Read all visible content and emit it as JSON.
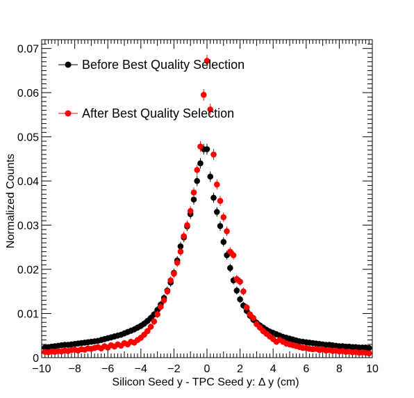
{
  "chart_data": {
    "type": "scatter",
    "xlabel": "Silicon Seed y - TPC Seed y:      Δ y (cm)",
    "ylabel": "Normalized Counts",
    "xlim": [
      -10,
      10
    ],
    "ylim": [
      0,
      0.072
    ],
    "x_ticks": [
      -10,
      -8,
      -6,
      -4,
      -2,
      0,
      2,
      4,
      6,
      8,
      10
    ],
    "y_ticks": [
      0,
      0.01,
      0.02,
      0.03,
      0.04,
      0.05,
      0.06,
      0.07
    ],
    "x_tick_labels": [
      "−10",
      "−8",
      "−6",
      "−4",
      "−2",
      "0",
      "2",
      "4",
      "6",
      "8",
      "10"
    ],
    "y_tick_labels": [
      "0",
      "0.01",
      "0.02",
      "0.03",
      "0.04",
      "0.05",
      "0.06",
      "0.07"
    ],
    "legend_position": "top-left",
    "grid": false,
    "series": [
      {
        "name": "Before Best Quality Selection",
        "color": "#000000",
        "x": [
          -9.8,
          -9.6,
          -9.4,
          -9.2,
          -9.0,
          -8.8,
          -8.6,
          -8.4,
          -8.2,
          -8.0,
          -7.8,
          -7.6,
          -7.4,
          -7.2,
          -7.0,
          -6.8,
          -6.6,
          -6.4,
          -6.2,
          -6.0,
          -5.8,
          -5.6,
          -5.4,
          -5.2,
          -5.0,
          -4.8,
          -4.6,
          -4.4,
          -4.2,
          -4.0,
          -3.8,
          -3.6,
          -3.4,
          -3.2,
          -3.0,
          -2.8,
          -2.6,
          -2.4,
          -2.2,
          -2.0,
          -1.8,
          -1.6,
          -1.4,
          -1.2,
          -1.0,
          -0.8,
          -0.6,
          -0.4,
          -0.2,
          0.0,
          0.2,
          0.4,
          0.6,
          0.8,
          1.0,
          1.2,
          1.4,
          1.6,
          1.8,
          2.0,
          2.2,
          2.4,
          2.6,
          2.8,
          3.0,
          3.2,
          3.4,
          3.6,
          3.8,
          4.0,
          4.2,
          4.4,
          4.6,
          4.8,
          5.0,
          5.2,
          5.4,
          5.6,
          5.8,
          6.0,
          6.2,
          6.4,
          6.6,
          6.8,
          7.0,
          7.2,
          7.4,
          7.6,
          7.8,
          8.0,
          8.2,
          8.4,
          8.6,
          8.8,
          9.0,
          9.2,
          9.4,
          9.6,
          9.8
        ],
        "y": [
          0.0023,
          0.0024,
          0.0025,
          0.0026,
          0.0027,
          0.0028,
          0.0029,
          0.0029,
          0.003,
          0.0031,
          0.0032,
          0.0033,
          0.0034,
          0.0035,
          0.0036,
          0.0037,
          0.0038,
          0.004,
          0.0042,
          0.0044,
          0.0046,
          0.0048,
          0.005,
          0.0052,
          0.0055,
          0.0058,
          0.0061,
          0.0064,
          0.0068,
          0.0072,
          0.0077,
          0.0083,
          0.009,
          0.0098,
          0.0108,
          0.012,
          0.0135,
          0.0152,
          0.017,
          0.0192,
          0.022,
          0.0252,
          0.0272,
          0.0297,
          0.0325,
          0.0358,
          0.04,
          0.044,
          0.0472,
          0.0472,
          0.041,
          0.0362,
          0.033,
          0.0298,
          0.0262,
          0.0232,
          0.0203,
          0.0175,
          0.0152,
          0.0132,
          0.0118,
          0.0106,
          0.0095,
          0.0086,
          0.0079,
          0.0073,
          0.0068,
          0.0063,
          0.0059,
          0.0056,
          0.0053,
          0.005,
          0.0047,
          0.0045,
          0.0043,
          0.0041,
          0.0039,
          0.0037,
          0.0036,
          0.0035,
          0.0034,
          0.0033,
          0.0032,
          0.0031,
          0.003,
          0.0029,
          0.0029,
          0.0028,
          0.0027,
          0.0026,
          0.0026,
          0.0025,
          0.0025,
          0.0024,
          0.0024,
          0.0023,
          0.0023,
          0.0023,
          0.0022
        ]
      },
      {
        "name": "After Best Quality Selection",
        "color": "#ff0000",
        "x": [
          -9.8,
          -9.6,
          -9.4,
          -9.2,
          -9.0,
          -8.8,
          -8.6,
          -8.4,
          -8.2,
          -8.0,
          -7.8,
          -7.6,
          -7.4,
          -7.2,
          -7.0,
          -6.8,
          -6.6,
          -6.4,
          -6.2,
          -6.0,
          -5.8,
          -5.6,
          -5.4,
          -5.2,
          -5.0,
          -4.8,
          -4.6,
          -4.4,
          -4.2,
          -4.0,
          -3.8,
          -3.6,
          -3.4,
          -3.2,
          -3.0,
          -2.8,
          -2.6,
          -2.4,
          -2.2,
          -2.0,
          -1.8,
          -1.6,
          -1.4,
          -1.2,
          -1.0,
          -0.8,
          -0.6,
          -0.4,
          -0.2,
          0.0,
          0.2,
          0.4,
          0.6,
          0.8,
          1.0,
          1.2,
          1.4,
          1.6,
          1.8,
          2.0,
          2.2,
          2.4,
          2.6,
          2.8,
          3.0,
          3.2,
          3.4,
          3.6,
          3.8,
          4.0,
          4.2,
          4.4,
          4.6,
          4.8,
          5.0,
          5.2,
          5.4,
          5.6,
          5.8,
          6.0,
          6.2,
          6.4,
          6.6,
          6.8,
          7.0,
          7.2,
          7.4,
          7.6,
          7.8,
          8.0,
          8.2,
          8.4,
          8.6,
          8.8,
          9.0,
          9.2,
          9.4,
          9.6,
          9.8
        ],
        "y": [
          0.0013,
          0.0012,
          0.0014,
          0.0013,
          0.0015,
          0.0014,
          0.0016,
          0.0015,
          0.0017,
          0.0018,
          0.0016,
          0.0019,
          0.0018,
          0.0021,
          0.002,
          0.0022,
          0.0024,
          0.0021,
          0.0026,
          0.0023,
          0.0028,
          0.0025,
          0.003,
          0.0027,
          0.0033,
          0.003,
          0.0036,
          0.0034,
          0.004,
          0.0045,
          0.0052,
          0.006,
          0.007,
          0.0082,
          0.0098,
          0.0115,
          0.013,
          0.015,
          0.0175,
          0.019,
          0.0215,
          0.024,
          0.0275,
          0.03,
          0.0332,
          0.0374,
          0.0425,
          0.0478,
          0.0595,
          0.0672,
          0.0562,
          0.046,
          0.0392,
          0.0355,
          0.0318,
          0.0286,
          0.024,
          0.0232,
          0.0178,
          0.0172,
          0.015,
          0.0114,
          0.0098,
          0.009,
          0.0076,
          0.0068,
          0.006,
          0.0054,
          0.0048,
          0.0042,
          0.0036,
          0.004,
          0.0036,
          0.0032,
          0.003,
          0.0028,
          0.0026,
          0.0024,
          0.0022,
          0.0022,
          0.002,
          0.0019,
          0.002,
          0.0017,
          0.0019,
          0.0016,
          0.0017,
          0.0015,
          0.0016,
          0.0014,
          0.0015,
          0.0013,
          0.0014,
          0.0012,
          0.0013,
          0.0011,
          0.0012,
          0.0011,
          0.001
        ]
      }
    ]
  }
}
